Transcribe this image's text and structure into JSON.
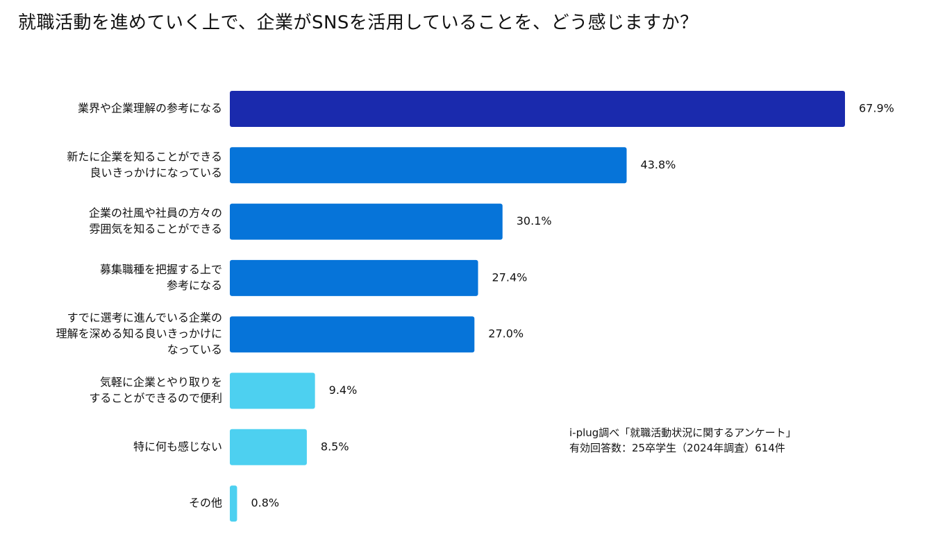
{
  "chart_data": {
    "type": "bar",
    "orientation": "horizontal",
    "title": "就職活動を進めていく上で、企業がSNSを活用していることを、どう感じますか？",
    "categories": [
      [
        "業界や企業理解の参考になる"
      ],
      [
        "新たに企業を知ることができる",
        "良いきっかけになっている"
      ],
      [
        "企業の社風や社員の方々の",
        "雰囲気を知ることができる"
      ],
      [
        "募集職種を把握する上で",
        "参考になる"
      ],
      [
        "すでに選考に進んでいる企業の",
        "理解を深める知る良いきっかけに",
        "なっている"
      ],
      [
        "気軽に企業とやり取りを",
        "することができるので便利"
      ],
      [
        "特に何も感じない"
      ],
      [
        "その他"
      ]
    ],
    "values": [
      67.9,
      43.8,
      30.1,
      27.4,
      27.0,
      9.4,
      8.5,
      0.8
    ],
    "value_labels": [
      "67.9%",
      "43.8%",
      "30.1%",
      "27.4%",
      "27.0%",
      "9.4%",
      "8.5%",
      "0.8%"
    ],
    "colors": [
      "#1a2aad",
      "#0674d9",
      "#0674d9",
      "#0674d9",
      "#0674d9",
      "#4dd0f0",
      "#4dd0f0",
      "#4dd0f0"
    ],
    "xlim": [
      0,
      67.9
    ],
    "xlabel": "",
    "ylabel": "",
    "grid": false
  },
  "source_note": {
    "line1": "i-plug調べ「就職活動状況に関するアンケート」",
    "line2": "有効回答数：25卒学生（2024年調査）614件"
  }
}
